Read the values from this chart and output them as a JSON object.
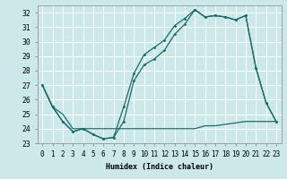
{
  "xlabel": "Humidex (Indice chaleur)",
  "xlim": [
    -0.5,
    23.5
  ],
  "ylim": [
    23,
    32.5
  ],
  "yticks": [
    23,
    24,
    25,
    26,
    27,
    28,
    29,
    30,
    31,
    32
  ],
  "xticks": [
    0,
    1,
    2,
    3,
    4,
    5,
    6,
    7,
    8,
    9,
    10,
    11,
    12,
    13,
    14,
    15,
    16,
    17,
    18,
    19,
    20,
    21,
    22,
    23
  ],
  "bg_color": "#cce8e8",
  "grid_color": "#ffffff",
  "line_color": "#1a6b6b",
  "line1_y": [
    27.0,
    25.5,
    24.5,
    23.8,
    24.0,
    23.6,
    23.3,
    23.4,
    24.5,
    27.3,
    28.4,
    28.8,
    29.4,
    30.5,
    31.2,
    32.2,
    31.7,
    31.8,
    31.7,
    31.5,
    31.8,
    28.2,
    25.8,
    24.5
  ],
  "line2_y": [
    27.0,
    25.5,
    25.0,
    24.0,
    24.0,
    24.0,
    24.0,
    24.0,
    24.0,
    24.0,
    24.0,
    24.0,
    24.0,
    24.0,
    24.0,
    24.0,
    24.2,
    24.2,
    24.3,
    24.4,
    24.5,
    24.5,
    24.5,
    24.5
  ],
  "line3_y": [
    27.0,
    25.5,
    24.5,
    23.8,
    24.0,
    23.6,
    23.3,
    23.4,
    25.5,
    27.8,
    29.1,
    29.6,
    30.1,
    31.1,
    31.6,
    32.2,
    31.7,
    31.8,
    31.7,
    31.5,
    31.8,
    28.2,
    25.8,
    24.5
  ],
  "tick_fontsize": 5.5,
  "xlabel_fontsize": 6.0
}
